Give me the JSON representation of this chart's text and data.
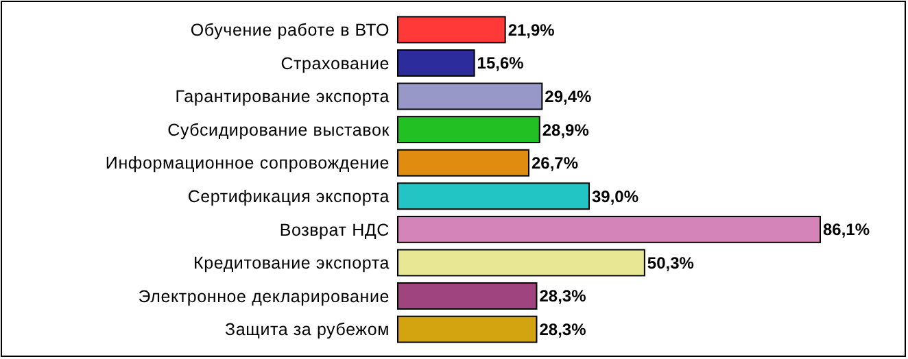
{
  "chart_data": {
    "type": "bar",
    "orientation": "horizontal",
    "categories": [
      "Обучение работе в ВТО",
      "Страхование",
      "Гарантирование экспорта",
      "Субсидирование выставок",
      "Информационное сопровождение",
      "Сертификация экспорта",
      "Возврат НДС",
      "Кредитование экспорта",
      "Электронное декларирование",
      "Защита за рубежом"
    ],
    "values": [
      21.9,
      15.6,
      29.4,
      28.9,
      26.7,
      39.0,
      86.1,
      50.3,
      28.3,
      28.3
    ],
    "value_labels": [
      "21,9%",
      "15,6%",
      "29,4%",
      "28,9%",
      "26,7%",
      "39,0%",
      "86,1%",
      "50,3%",
      "28,3%",
      "28,3%"
    ],
    "colors": [
      "#ff3838",
      "#2c2c9c",
      "#9898c8",
      "#22c022",
      "#e08c10",
      "#22c4c4",
      "#d484b8",
      "#e8e894",
      "#a04480",
      "#d4a410"
    ]
  }
}
